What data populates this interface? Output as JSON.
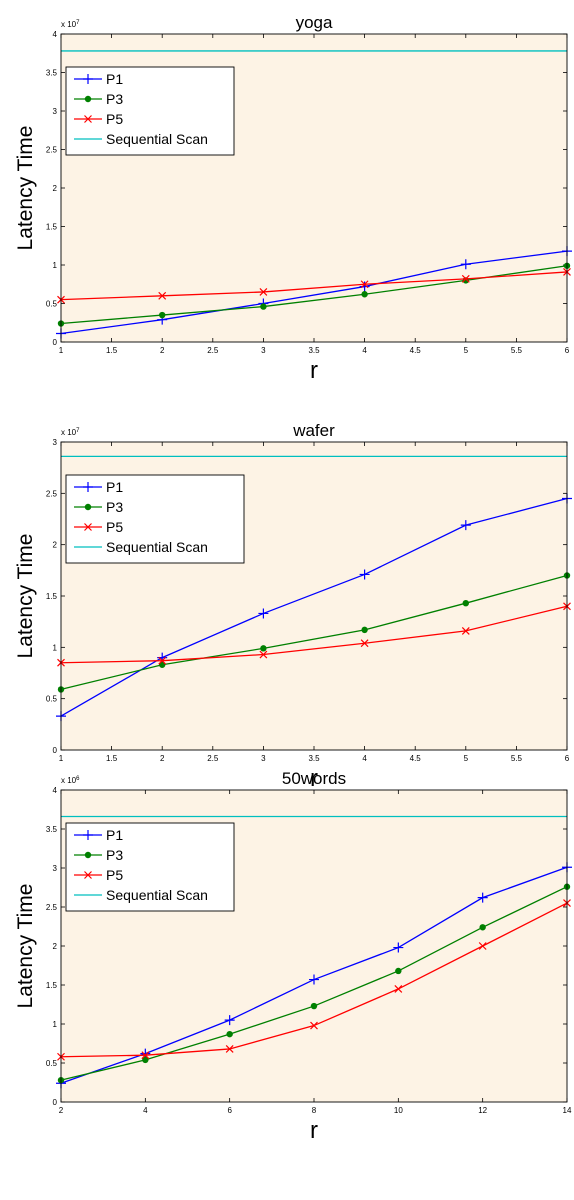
{
  "plot_background": "#fdf3e5",
  "chart_data": [
    {
      "type": "line",
      "title": "yoga",
      "xlabel": "r",
      "ylabel": "Latency Time",
      "y_multiplier": "x 10",
      "y_exponent": "7",
      "xlim": [
        1,
        6
      ],
      "ylim": [
        0,
        4
      ],
      "xticks": [
        "1",
        "1.5",
        "2",
        "2.5",
        "3",
        "3.5",
        "4",
        "4.5",
        "5",
        "5.5",
        "6"
      ],
      "yticks": [
        "0",
        "0.5",
        "1",
        "1.5",
        "2",
        "2.5",
        "3",
        "3.5",
        "4"
      ],
      "legend_position": "top-left",
      "series": [
        {
          "name": "P1",
          "color": "#0000ff",
          "marker": "plus",
          "x": [
            1,
            2,
            3,
            4,
            5,
            6
          ],
          "y": [
            0.11,
            0.29,
            0.5,
            0.72,
            1.01,
            1.18
          ]
        },
        {
          "name": "P3",
          "color": "#008000",
          "marker": "dot",
          "x": [
            1,
            2,
            3,
            4,
            5,
            6
          ],
          "y": [
            0.24,
            0.35,
            0.46,
            0.62,
            0.8,
            0.99
          ]
        },
        {
          "name": "P5",
          "color": "#ff0000",
          "marker": "x",
          "x": [
            1,
            2,
            3,
            4,
            5,
            6
          ],
          "y": [
            0.55,
            0.6,
            0.65,
            0.75,
            0.82,
            0.91
          ]
        },
        {
          "name": "Sequential Scan",
          "color": "#00bfbf",
          "marker": "none",
          "x": [
            1,
            6
          ],
          "y": [
            3.78,
            3.78
          ]
        }
      ]
    },
    {
      "type": "line",
      "title": "wafer",
      "xlabel": "r",
      "ylabel": "Latency Time",
      "y_multiplier": "x 10",
      "y_exponent": "7",
      "xlim": [
        1,
        6
      ],
      "ylim": [
        0,
        3
      ],
      "xticks": [
        "1",
        "1.5",
        "2",
        "2.5",
        "3",
        "3.5",
        "4",
        "4.5",
        "5",
        "5.5",
        "6"
      ],
      "yticks": [
        "0",
        "0.5",
        "1",
        "1.5",
        "2",
        "2.5",
        "3"
      ],
      "legend_position": "top-left",
      "series": [
        {
          "name": "P1",
          "color": "#0000ff",
          "marker": "plus",
          "x": [
            1,
            2,
            3,
            4,
            5,
            6
          ],
          "y": [
            0.33,
            0.9,
            1.33,
            1.71,
            2.19,
            2.45
          ]
        },
        {
          "name": "P3",
          "color": "#008000",
          "marker": "dot",
          "x": [
            1,
            2,
            3,
            4,
            5,
            6
          ],
          "y": [
            0.59,
            0.83,
            0.99,
            1.17,
            1.43,
            1.7
          ]
        },
        {
          "name": "P5",
          "color": "#ff0000",
          "marker": "x",
          "x": [
            1,
            2,
            3,
            4,
            5,
            6
          ],
          "y": [
            0.85,
            0.87,
            0.93,
            1.04,
            1.16,
            1.4
          ]
        },
        {
          "name": "Sequential Scan",
          "color": "#00bfbf",
          "marker": "none",
          "x": [
            1,
            6
          ],
          "y": [
            2.86,
            2.86
          ]
        }
      ]
    },
    {
      "type": "line",
      "title": "50words",
      "xlabel": "r",
      "ylabel": "Latency Time",
      "y_multiplier": "x 10",
      "y_exponent": "6",
      "xlim": [
        2,
        14
      ],
      "ylim": [
        0,
        4
      ],
      "xticks": [
        "2",
        "4",
        "6",
        "8",
        "10",
        "12",
        "14"
      ],
      "yticks": [
        "0",
        "0.5",
        "1",
        "1.5",
        "2",
        "2.5",
        "3",
        "3.5",
        "4"
      ],
      "legend_position": "top-left",
      "series": [
        {
          "name": "P1",
          "color": "#0000ff",
          "marker": "plus",
          "x": [
            2,
            4,
            6,
            8,
            10,
            12,
            14
          ],
          "y": [
            0.24,
            0.62,
            1.05,
            1.57,
            1.98,
            2.62,
            3.01
          ]
        },
        {
          "name": "P3",
          "color": "#008000",
          "marker": "dot",
          "x": [
            2,
            4,
            6,
            8,
            10,
            12,
            14
          ],
          "y": [
            0.28,
            0.54,
            0.87,
            1.23,
            1.68,
            2.24,
            2.76
          ]
        },
        {
          "name": "P5",
          "color": "#ff0000",
          "marker": "x",
          "x": [
            2,
            4,
            6,
            8,
            10,
            12,
            14
          ],
          "y": [
            0.58,
            0.6,
            0.68,
            0.98,
            1.45,
            2.0,
            2.55
          ]
        },
        {
          "name": "Sequential Scan",
          "color": "#00bfbf",
          "marker": "none",
          "x": [
            2,
            14
          ],
          "y": [
            3.66,
            3.66
          ]
        }
      ]
    }
  ]
}
